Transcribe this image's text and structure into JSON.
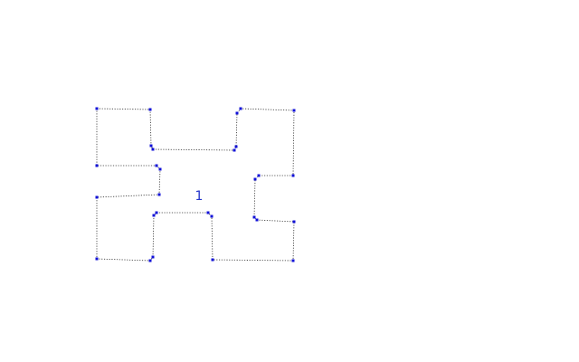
{
  "diagram": {
    "region_label": "1",
    "colors": {
      "outline": "#2b2b2b",
      "vertex": "#1010d8",
      "label": "#2233cc",
      "background": "#ffffff"
    }
  }
}
